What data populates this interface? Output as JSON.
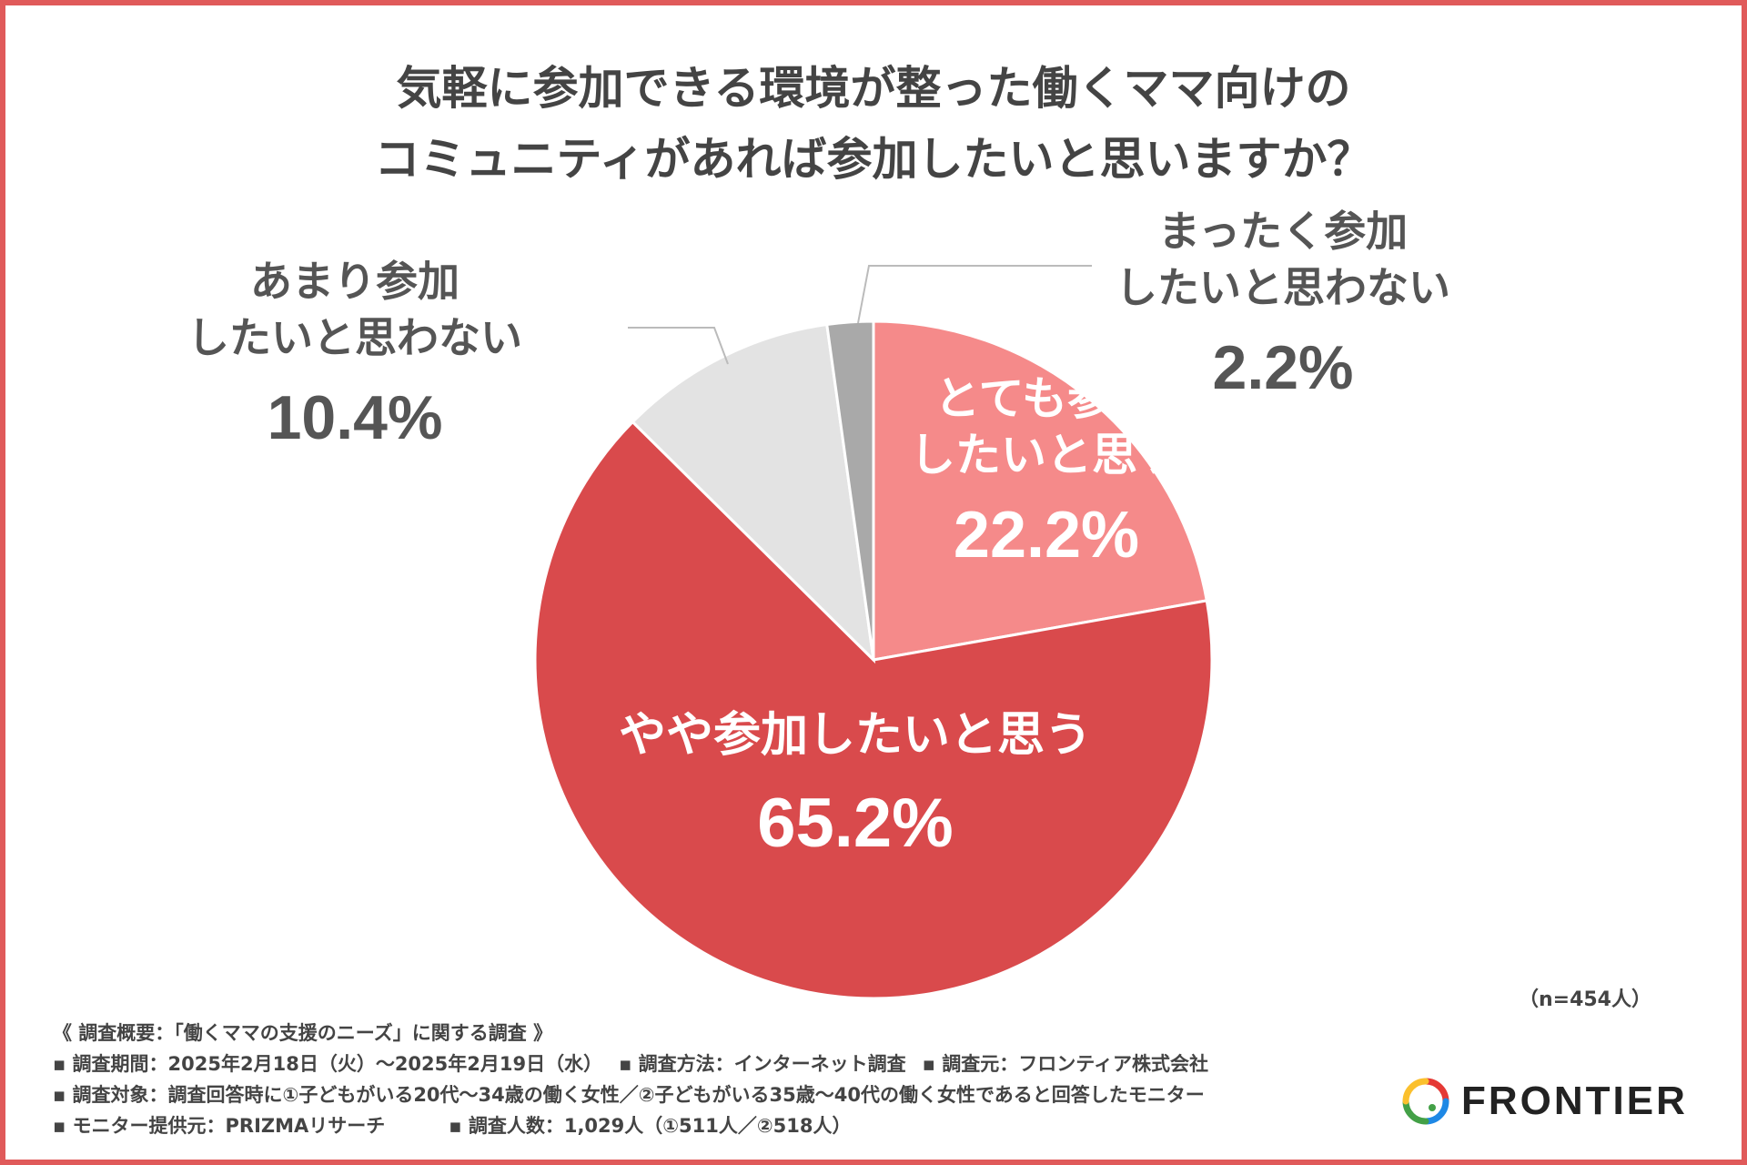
{
  "title": {
    "line1": "気軽に参加できる環境が整った働くママ向けの",
    "line2": "コミュニティがあれば参加したいと思いますか？"
  },
  "chart_data": {
    "type": "pie",
    "title": "気軽に参加できる環境が整った働くママ向けのコミュニティがあれば参加したいと思いますか？",
    "start": "12 o'clock, clockwise",
    "slices": [
      {
        "label_lines": [
          "とても参加",
          "したいと思う"
        ],
        "value": 22.2,
        "value_label": "22.2%",
        "color": "#f58a8a",
        "label_color": "#ffffff"
      },
      {
        "label_lines": [
          "やや参加したいと思う"
        ],
        "value": 65.2,
        "value_label": "65.2%",
        "color": "#d94a4c",
        "label_color": "#ffffff"
      },
      {
        "label_lines": [
          "あまり参加",
          "したいと思わない"
        ],
        "value": 10.4,
        "value_label": "10.4%",
        "color": "#e3e3e3",
        "label_color": "#555555"
      },
      {
        "label_lines": [
          "まったく参加",
          "したいと思わない"
        ],
        "value": 2.2,
        "value_label": "2.2%",
        "color": "#a9a9a9",
        "label_color": "#555555"
      }
    ]
  },
  "sample": "（n=454人）",
  "notes": {
    "header": "《 調査概要：「働くママの支援のニーズ」に関する調査 》",
    "period": "▪ 調査期間：2025年2月18日（火）〜2025年2月19日（水）",
    "method": "▪ 調査方法：インターネット調査",
    "source": "▪ 調査元：フロンティア株式会社",
    "target": "▪ 調査対象：調査回答時に①子どもがいる20代〜34歳の働く女性／②子どもがいる35歳〜40代の働く女性であると回答したモニター",
    "provider": "▪ モニター提供元：PRIZMAリサーチ",
    "count": "▪ 調査人数：1,029人（①511人／②518人）"
  },
  "logo": {
    "text": "FRONTIER"
  }
}
